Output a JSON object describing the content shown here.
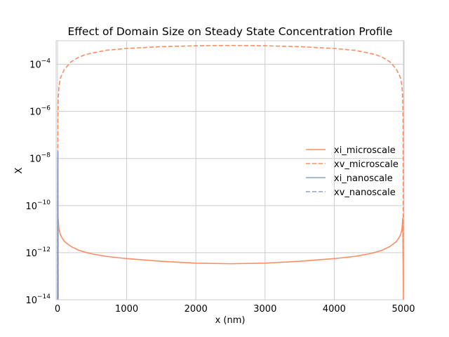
{
  "chart_data": {
    "type": "line",
    "title": "Effect of Domain Size on Steady State Concentration Profile",
    "xlabel": "x (nm)",
    "ylabel": "X",
    "xlim": [
      -20,
      5010
    ],
    "ylim_log10": [
      -14,
      -3
    ],
    "y_scale": "log",
    "grid": true,
    "legend_position": "center-right",
    "x_ticks": [
      0,
      1000,
      2000,
      3000,
      4000,
      5000
    ],
    "x_tick_labels": [
      "0",
      "1000",
      "2000",
      "3000",
      "4000",
      "5000"
    ],
    "y_ticks_log10": [
      -14,
      -12,
      -10,
      -8,
      -6,
      -4
    ],
    "y_tick_labels": [
      {
        "base": "10",
        "exp": "−14"
      },
      {
        "base": "10",
        "exp": "−12"
      },
      {
        "base": "10",
        "exp": "−10"
      },
      {
        "base": "10",
        "exp": "−8"
      },
      {
        "base": "10",
        "exp": "−6"
      },
      {
        "base": "10",
        "exp": "−4"
      }
    ],
    "series": [
      {
        "name": "xi_microscale",
        "color": "#fc8d62",
        "dash": "solid",
        "x": [
          0,
          10,
          20,
          40,
          60,
          100,
          150,
          200,
          300,
          400,
          500,
          700,
          1000,
          1500,
          2000,
          2500,
          3000,
          3500,
          4000,
          4300,
          4500,
          4600,
          4700,
          4800,
          4850,
          4900,
          4940,
          4960,
          4980,
          4990,
          5000
        ],
        "y": [
          1e-14,
          3e-11,
          1e-11,
          6e-12,
          4.5e-12,
          3e-12,
          2.3e-12,
          1.8e-12,
          1.3e-12,
          1.05e-12,
          8.9e-13,
          7e-13,
          5.6e-13,
          4.3e-13,
          3.6e-13,
          3.4e-13,
          3.6e-13,
          4.3e-13,
          5.6e-13,
          7e-13,
          8.9e-13,
          1.05e-12,
          1.3e-12,
          1.8e-12,
          2.3e-12,
          3e-12,
          4.5e-12,
          6e-12,
          1e-11,
          3e-11,
          1e-14
        ]
      },
      {
        "name": "xv_microscale",
        "color": "#fc8d62",
        "dash": "dashed",
        "x": [
          0,
          5,
          10,
          20,
          40,
          60,
          100,
          150,
          200,
          300,
          400,
          500,
          700,
          1000,
          1500,
          2000,
          2500,
          3000,
          3500,
          4000,
          4300,
          4500,
          4600,
          4700,
          4800,
          4850,
          4900,
          4940,
          4960,
          4980,
          4990,
          4995,
          5000
        ],
        "y": [
          1e-14,
          5e-07,
          3e-06,
          1.1e-05,
          2.5e-05,
          3.5e-05,
          6e-05,
          9e-05,
          0.00013,
          0.000195,
          0.000255,
          0.0003,
          0.00039,
          0.00047,
          0.00056,
          0.00061,
          0.00063,
          0.00061,
          0.00056,
          0.00047,
          0.00039,
          0.0003,
          0.000255,
          0.000195,
          0.00013,
          9e-05,
          6e-05,
          3.5e-05,
          2.5e-05,
          1.1e-05,
          3e-06,
          5e-07,
          1e-14
        ]
      },
      {
        "name": "xi_nanoscale",
        "color": "#8da0cb",
        "dash": "solid",
        "x": [
          0,
          2,
          4,
          6,
          8,
          10
        ],
        "y": [
          1e-14,
          1e-08,
          1.3e-08,
          2e-08,
          1e-10,
          1e-14
        ]
      },
      {
        "name": "xv_nanoscale",
        "color": "#8da0cb",
        "dash": "dashed",
        "x": [
          0,
          2,
          4,
          6,
          8,
          10
        ],
        "y": [
          1e-14,
          3e-09,
          1e-08,
          1.5e-08,
          5e-11,
          1e-14
        ]
      }
    ]
  }
}
